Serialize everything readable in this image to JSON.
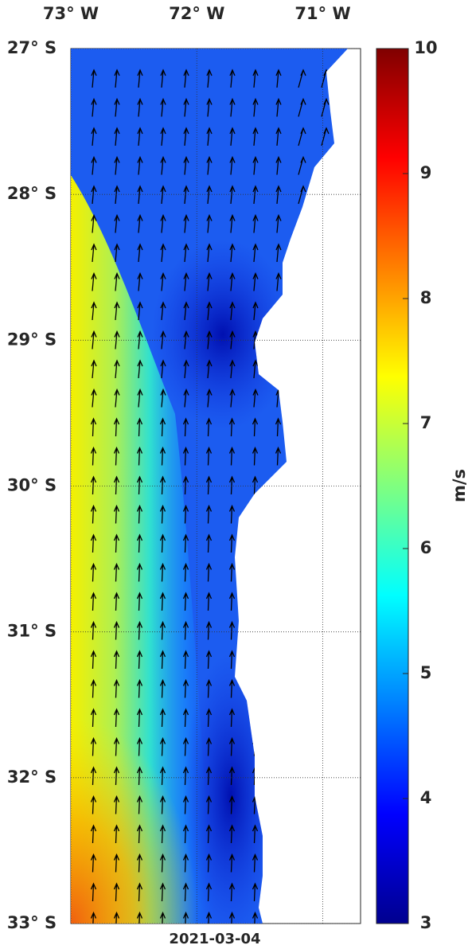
{
  "map": {
    "lon_ticks": [
      {
        "value": -73,
        "label": "73° W"
      },
      {
        "value": -72,
        "label": "72° W"
      },
      {
        "value": -71,
        "label": "71° W"
      }
    ],
    "lat_ticks": [
      {
        "value": -27,
        "label": "27° S"
      },
      {
        "value": -28,
        "label": "28° S"
      },
      {
        "value": -29,
        "label": "29° S"
      },
      {
        "value": -30,
        "label": "30° S"
      },
      {
        "value": -31,
        "label": "31° S"
      },
      {
        "value": -32,
        "label": "32° S"
      },
      {
        "value": -33,
        "label": "33° S"
      }
    ],
    "xlim": [
      -73,
      -70.7
    ],
    "ylim": [
      -33,
      -27
    ],
    "date": "2021-03-04",
    "colorbar": {
      "label": "m/s",
      "lim": [
        3,
        10
      ],
      "ticks": [
        3,
        4,
        5,
        6,
        7,
        8,
        9,
        10
      ]
    }
  }
}
